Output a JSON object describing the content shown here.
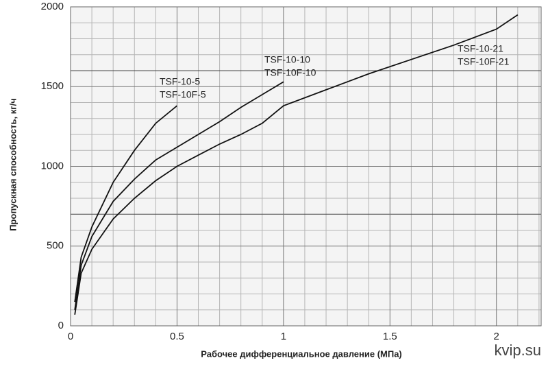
{
  "chart_data": {
    "type": "line",
    "x_label": "Рабочее дифференциальное давление (МПа)",
    "y_label": "Пропускная способность, кг/ч",
    "watermark": "kvip.su",
    "xlim": [
      0,
      2.21
    ],
    "ylim": [
      0,
      2000
    ],
    "xticks": [
      0,
      0.5,
      1,
      1.5,
      2
    ],
    "yticks": [
      0,
      500,
      1000,
      1500,
      2000
    ],
    "x_minor_grid": [
      0.1,
      0.2,
      0.3,
      0.4,
      0.6,
      0.7,
      0.8,
      0.9,
      1.1,
      1.2,
      1.3,
      1.4,
      1.6,
      1.7,
      1.8,
      1.9,
      2.1,
      2.2
    ],
    "y_minor_grid": [
      100,
      200,
      300,
      400,
      600,
      800,
      900,
      1100,
      1200,
      1300,
      1400,
      1700,
      1800,
      1900
    ],
    "ref_lines": [
      700,
      1600
    ],
    "grid": true,
    "series": [
      {
        "name": "TSF-10-5",
        "alt_name": "TSF-10F-5",
        "color": "#111",
        "x": [
          0.02,
          0.05,
          0.1,
          0.2,
          0.3,
          0.4,
          0.5
        ],
        "values": [
          150,
          430,
          620,
          900,
          1100,
          1270,
          1380
        ]
      },
      {
        "name": "TSF-10-10",
        "alt_name": "TSF-10F-10",
        "color": "#111",
        "x": [
          0.02,
          0.05,
          0.1,
          0.2,
          0.3,
          0.4,
          0.5,
          0.6,
          0.7,
          0.8,
          0.9,
          1.0
        ],
        "values": [
          100,
          380,
          560,
          780,
          920,
          1040,
          1120,
          1200,
          1280,
          1370,
          1450,
          1530
        ]
      },
      {
        "name": "TSF-10-21",
        "alt_name": "TSF-10F-21",
        "color": "#111",
        "x": [
          0.02,
          0.05,
          0.1,
          0.2,
          0.3,
          0.4,
          0.5,
          0.6,
          0.7,
          0.8,
          0.9,
          1.0,
          1.2,
          1.4,
          1.6,
          1.8,
          2.0,
          2.1
        ],
        "values": [
          70,
          330,
          480,
          670,
          800,
          910,
          1000,
          1070,
          1140,
          1200,
          1270,
          1380,
          1480,
          1580,
          1670,
          1760,
          1860,
          1950
        ]
      }
    ]
  }
}
